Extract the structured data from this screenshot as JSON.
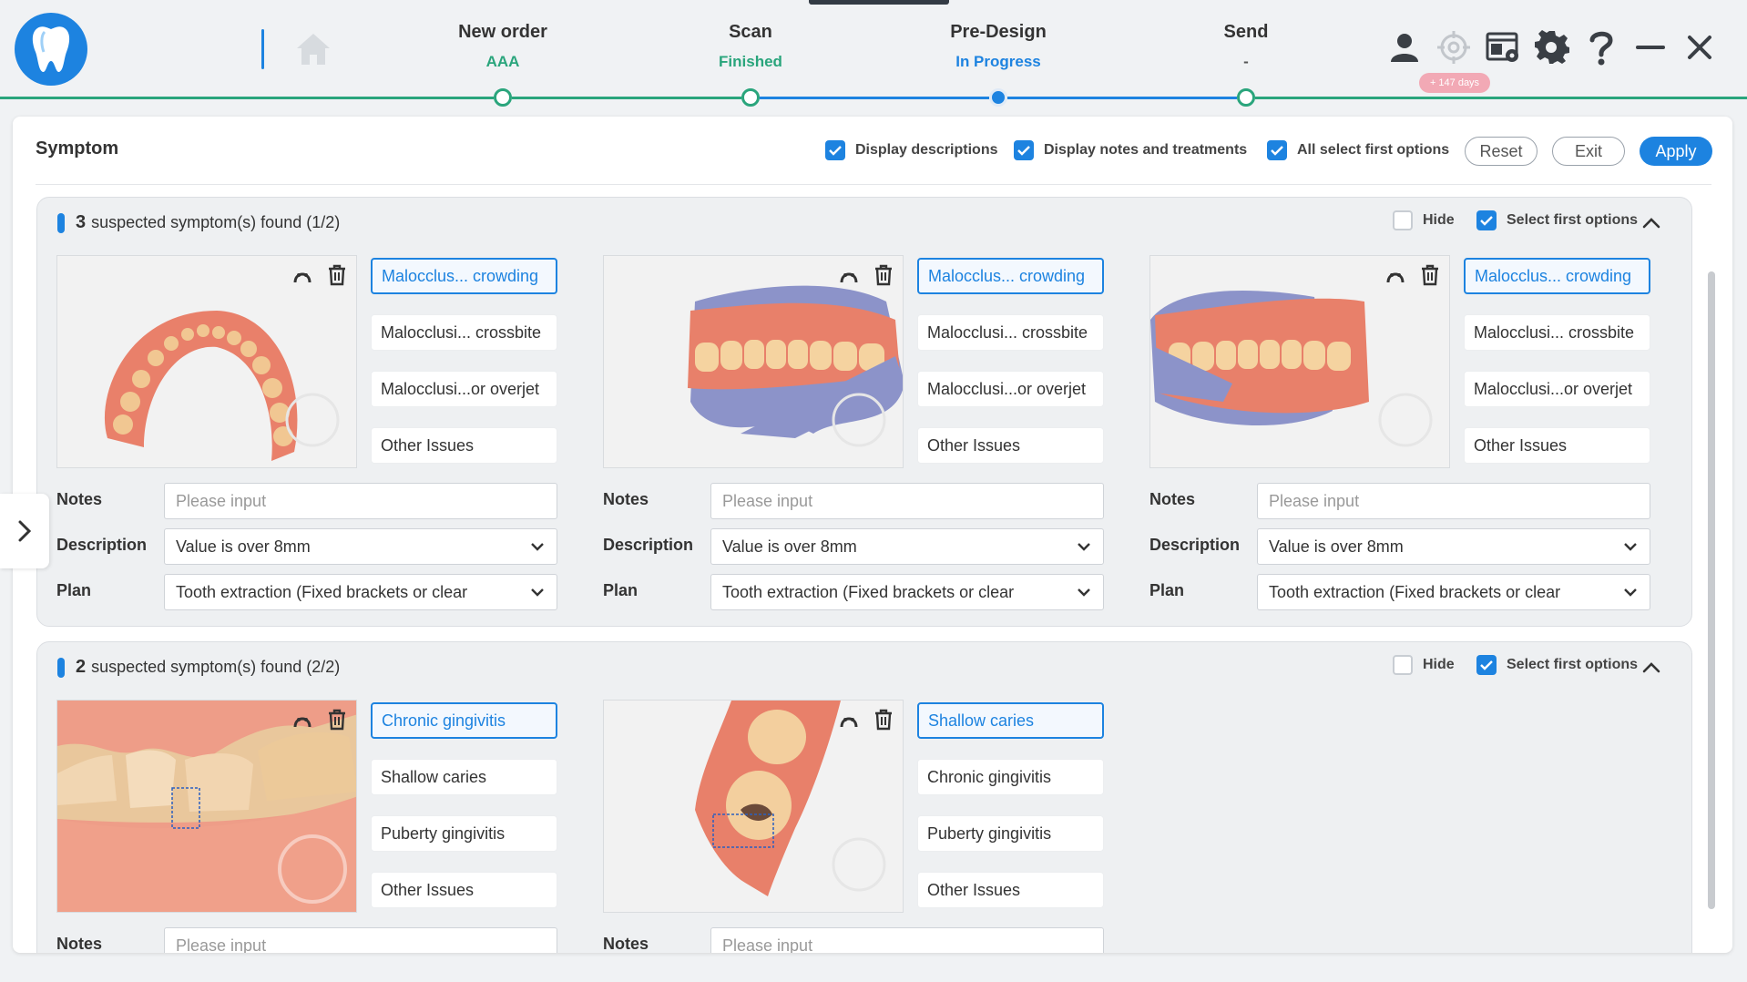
{
  "steps": [
    {
      "title": "New order",
      "status": "AAA"
    },
    {
      "title": "Scan",
      "status": "Finished"
    },
    {
      "title": "Pre-Design",
      "status": "In Progress"
    },
    {
      "title": "Send",
      "status": "-"
    }
  ],
  "topbar": {
    "days_badge": "+ 147 days",
    "icons": [
      "user-icon",
      "target-icon",
      "window-settings-icon",
      "gear-icon",
      "help-icon",
      "minimize-icon",
      "close-icon"
    ]
  },
  "panel": {
    "title": "Symptom",
    "display_descriptions": "Display descriptions",
    "display_notes": "Display notes and treatments",
    "all_select_first": "All select first options",
    "reset": "Reset",
    "exit": "Exit",
    "apply": "Apply"
  },
  "groups": [
    {
      "count": "3",
      "label": "suspected symptom(s) found (1/2)",
      "hide": "Hide",
      "select_first": "Select first options",
      "cards": [
        {
          "options": [
            "Malocclus... crowding",
            "Malocclusi... crossbite",
            "Malocclusi...or overjet",
            "Other Issues"
          ]
        },
        {
          "options": [
            "Malocclus... crowding",
            "Malocclusi... crossbite",
            "Malocclusi...or overjet",
            "Other Issues"
          ]
        },
        {
          "options": [
            "Malocclus... crowding",
            "Malocclusi... crossbite",
            "Malocclusi...or overjet",
            "Other Issues"
          ]
        }
      ]
    },
    {
      "count": "2",
      "label": "suspected symptom(s) found (2/2)",
      "hide": "Hide",
      "select_first": "Select first options",
      "cards": [
        {
          "options": [
            "Chronic gingivitis",
            "Shallow caries",
            "Puberty gingivitis",
            "Other Issues"
          ]
        },
        {
          "options": [
            "Shallow caries",
            "Chronic gingivitis",
            "Puberty gingivitis",
            "Other Issues"
          ]
        }
      ]
    }
  ],
  "form": {
    "notes_label": "Notes",
    "notes_placeholder": "Please input",
    "description_label": "Description",
    "description_value": "Value is over 8mm",
    "plan_label": "Plan",
    "plan_value": "Tooth extraction (Fixed brackets or clear"
  },
  "colors": {
    "accent": "#1d83e0",
    "success": "#2aa57c",
    "badge": "#f2a9b5"
  }
}
